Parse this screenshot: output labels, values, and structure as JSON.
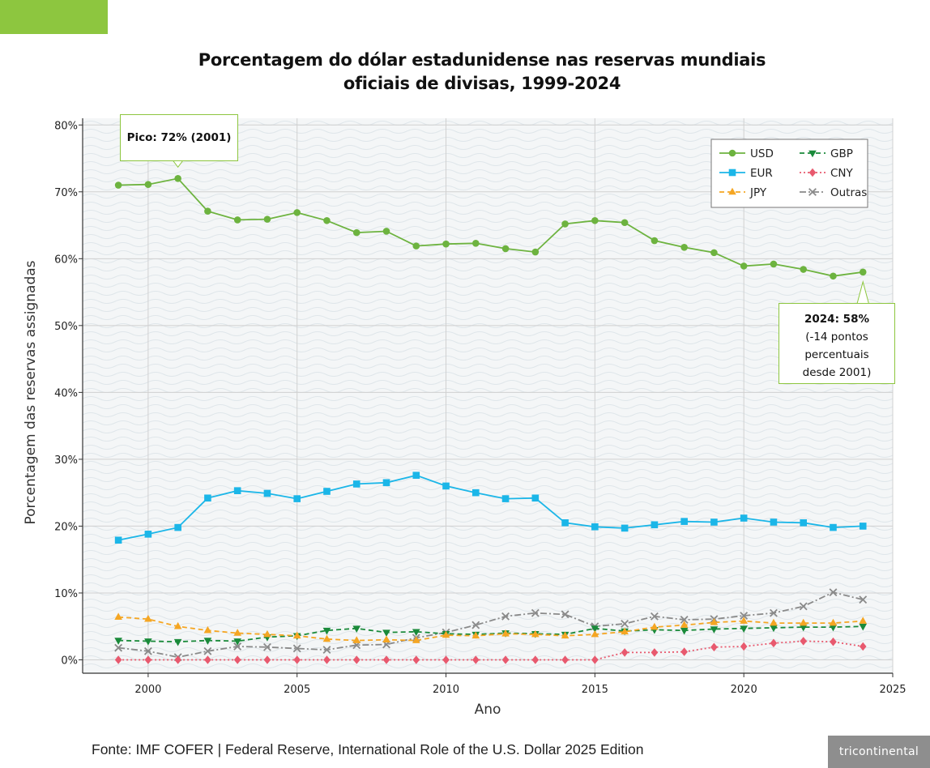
{
  "chart_data": {
    "type": "line",
    "title": [
      "Porcentagem do dólar estadunidense nas reservas mundiais",
      "oficiais de divisas, 1999-2024"
    ],
    "xlabel": "Ano",
    "ylabel": "Porcentagem das reservas assignadas",
    "x": [
      1999,
      2000,
      2001,
      2002,
      2003,
      2004,
      2005,
      2006,
      2007,
      2008,
      2009,
      2010,
      2011,
      2012,
      2013,
      2014,
      2015,
      2016,
      2017,
      2018,
      2019,
      2020,
      2021,
      2022,
      2023,
      2024
    ],
    "xlim": [
      1997.8,
      2025
    ],
    "ylim": [
      -2,
      81
    ],
    "xticks": [
      2000,
      2005,
      2010,
      2015,
      2020,
      2025
    ],
    "yticks": [
      0,
      10,
      20,
      30,
      40,
      50,
      60,
      70,
      80
    ],
    "ytick_suffix": "%",
    "grid": true,
    "legend_position": "top-right",
    "series": [
      {
        "name": "USD",
        "color": "#6db33f",
        "dash": "",
        "marker": "circle",
        "values": [
          71.0,
          71.1,
          72.0,
          67.1,
          65.8,
          65.9,
          66.9,
          65.7,
          63.9,
          64.1,
          61.9,
          62.2,
          62.3,
          61.5,
          61.0,
          65.2,
          65.7,
          65.4,
          62.7,
          61.7,
          60.9,
          58.9,
          59.2,
          58.4,
          57.4,
          58.0
        ]
      },
      {
        "name": "EUR",
        "color": "#1bb6e8",
        "dash": "",
        "marker": "square",
        "values": [
          17.9,
          18.8,
          19.8,
          24.2,
          25.3,
          24.9,
          24.1,
          25.2,
          26.3,
          26.5,
          27.6,
          26.0,
          25.0,
          24.1,
          24.2,
          20.5,
          19.9,
          19.7,
          20.2,
          20.7,
          20.6,
          21.2,
          20.6,
          20.5,
          19.8,
          20.0
        ]
      },
      {
        "name": "JPY",
        "color": "#f5a623",
        "dash": "6,4",
        "marker": "triangle-up",
        "values": [
          6.4,
          6.1,
          5.0,
          4.4,
          4.0,
          3.8,
          3.6,
          3.1,
          2.9,
          3.0,
          2.9,
          3.7,
          3.6,
          3.9,
          3.8,
          3.6,
          3.8,
          4.2,
          4.9,
          5.2,
          5.6,
          5.8,
          5.5,
          5.5,
          5.5,
          5.8
        ]
      },
      {
        "name": "GBP",
        "color": "#1a8a3a",
        "dash": "6,4",
        "marker": "triangle-down",
        "values": [
          2.9,
          2.8,
          2.7,
          2.9,
          2.8,
          3.4,
          3.6,
          4.4,
          4.7,
          4.1,
          4.2,
          3.9,
          3.8,
          4.0,
          3.9,
          3.8,
          4.7,
          4.3,
          4.5,
          4.4,
          4.6,
          4.7,
          4.8,
          4.9,
          4.9,
          5.0
        ]
      },
      {
        "name": "CNY",
        "color": "#e8596e",
        "dash": "2,3",
        "marker": "diamond",
        "values": [
          0,
          0,
          0,
          0,
          0,
          0,
          0,
          0,
          0,
          0,
          0,
          0,
          0,
          0,
          0,
          0,
          0,
          1.1,
          1.1,
          1.2,
          1.9,
          2.0,
          2.5,
          2.8,
          2.7,
          2.0
        ]
      },
      {
        "name": "Outras",
        "color": "#8a8a8a",
        "dash": "8,3,2,3",
        "marker": "x",
        "values": [
          1.8,
          1.3,
          0.4,
          1.3,
          2.0,
          1.9,
          1.7,
          1.5,
          2.2,
          2.3,
          3.3,
          4.1,
          5.2,
          6.5,
          7.0,
          6.8,
          5.0,
          5.4,
          6.5,
          6.0,
          6.1,
          6.6,
          7.0,
          8.0,
          10.1,
          9.0
        ]
      }
    ],
    "annotations": [
      {
        "year": 2001,
        "value": 72.0,
        "text": "Pico: 72% (2001)"
      },
      {
        "year": 2024,
        "value": 58.0,
        "lines": [
          "2024: 58%",
          "(-14 pontos",
          "percentuais",
          "desde 2001)"
        ]
      }
    ]
  },
  "source": "Fonte: IMF COFER | Federal Reserve, International Role of the U.S. Dollar 2025 Edition",
  "brand": "tricontinental",
  "colors": {
    "accent": "#8dc63f",
    "grid": "#d0d0d0",
    "axis": "#333333"
  }
}
